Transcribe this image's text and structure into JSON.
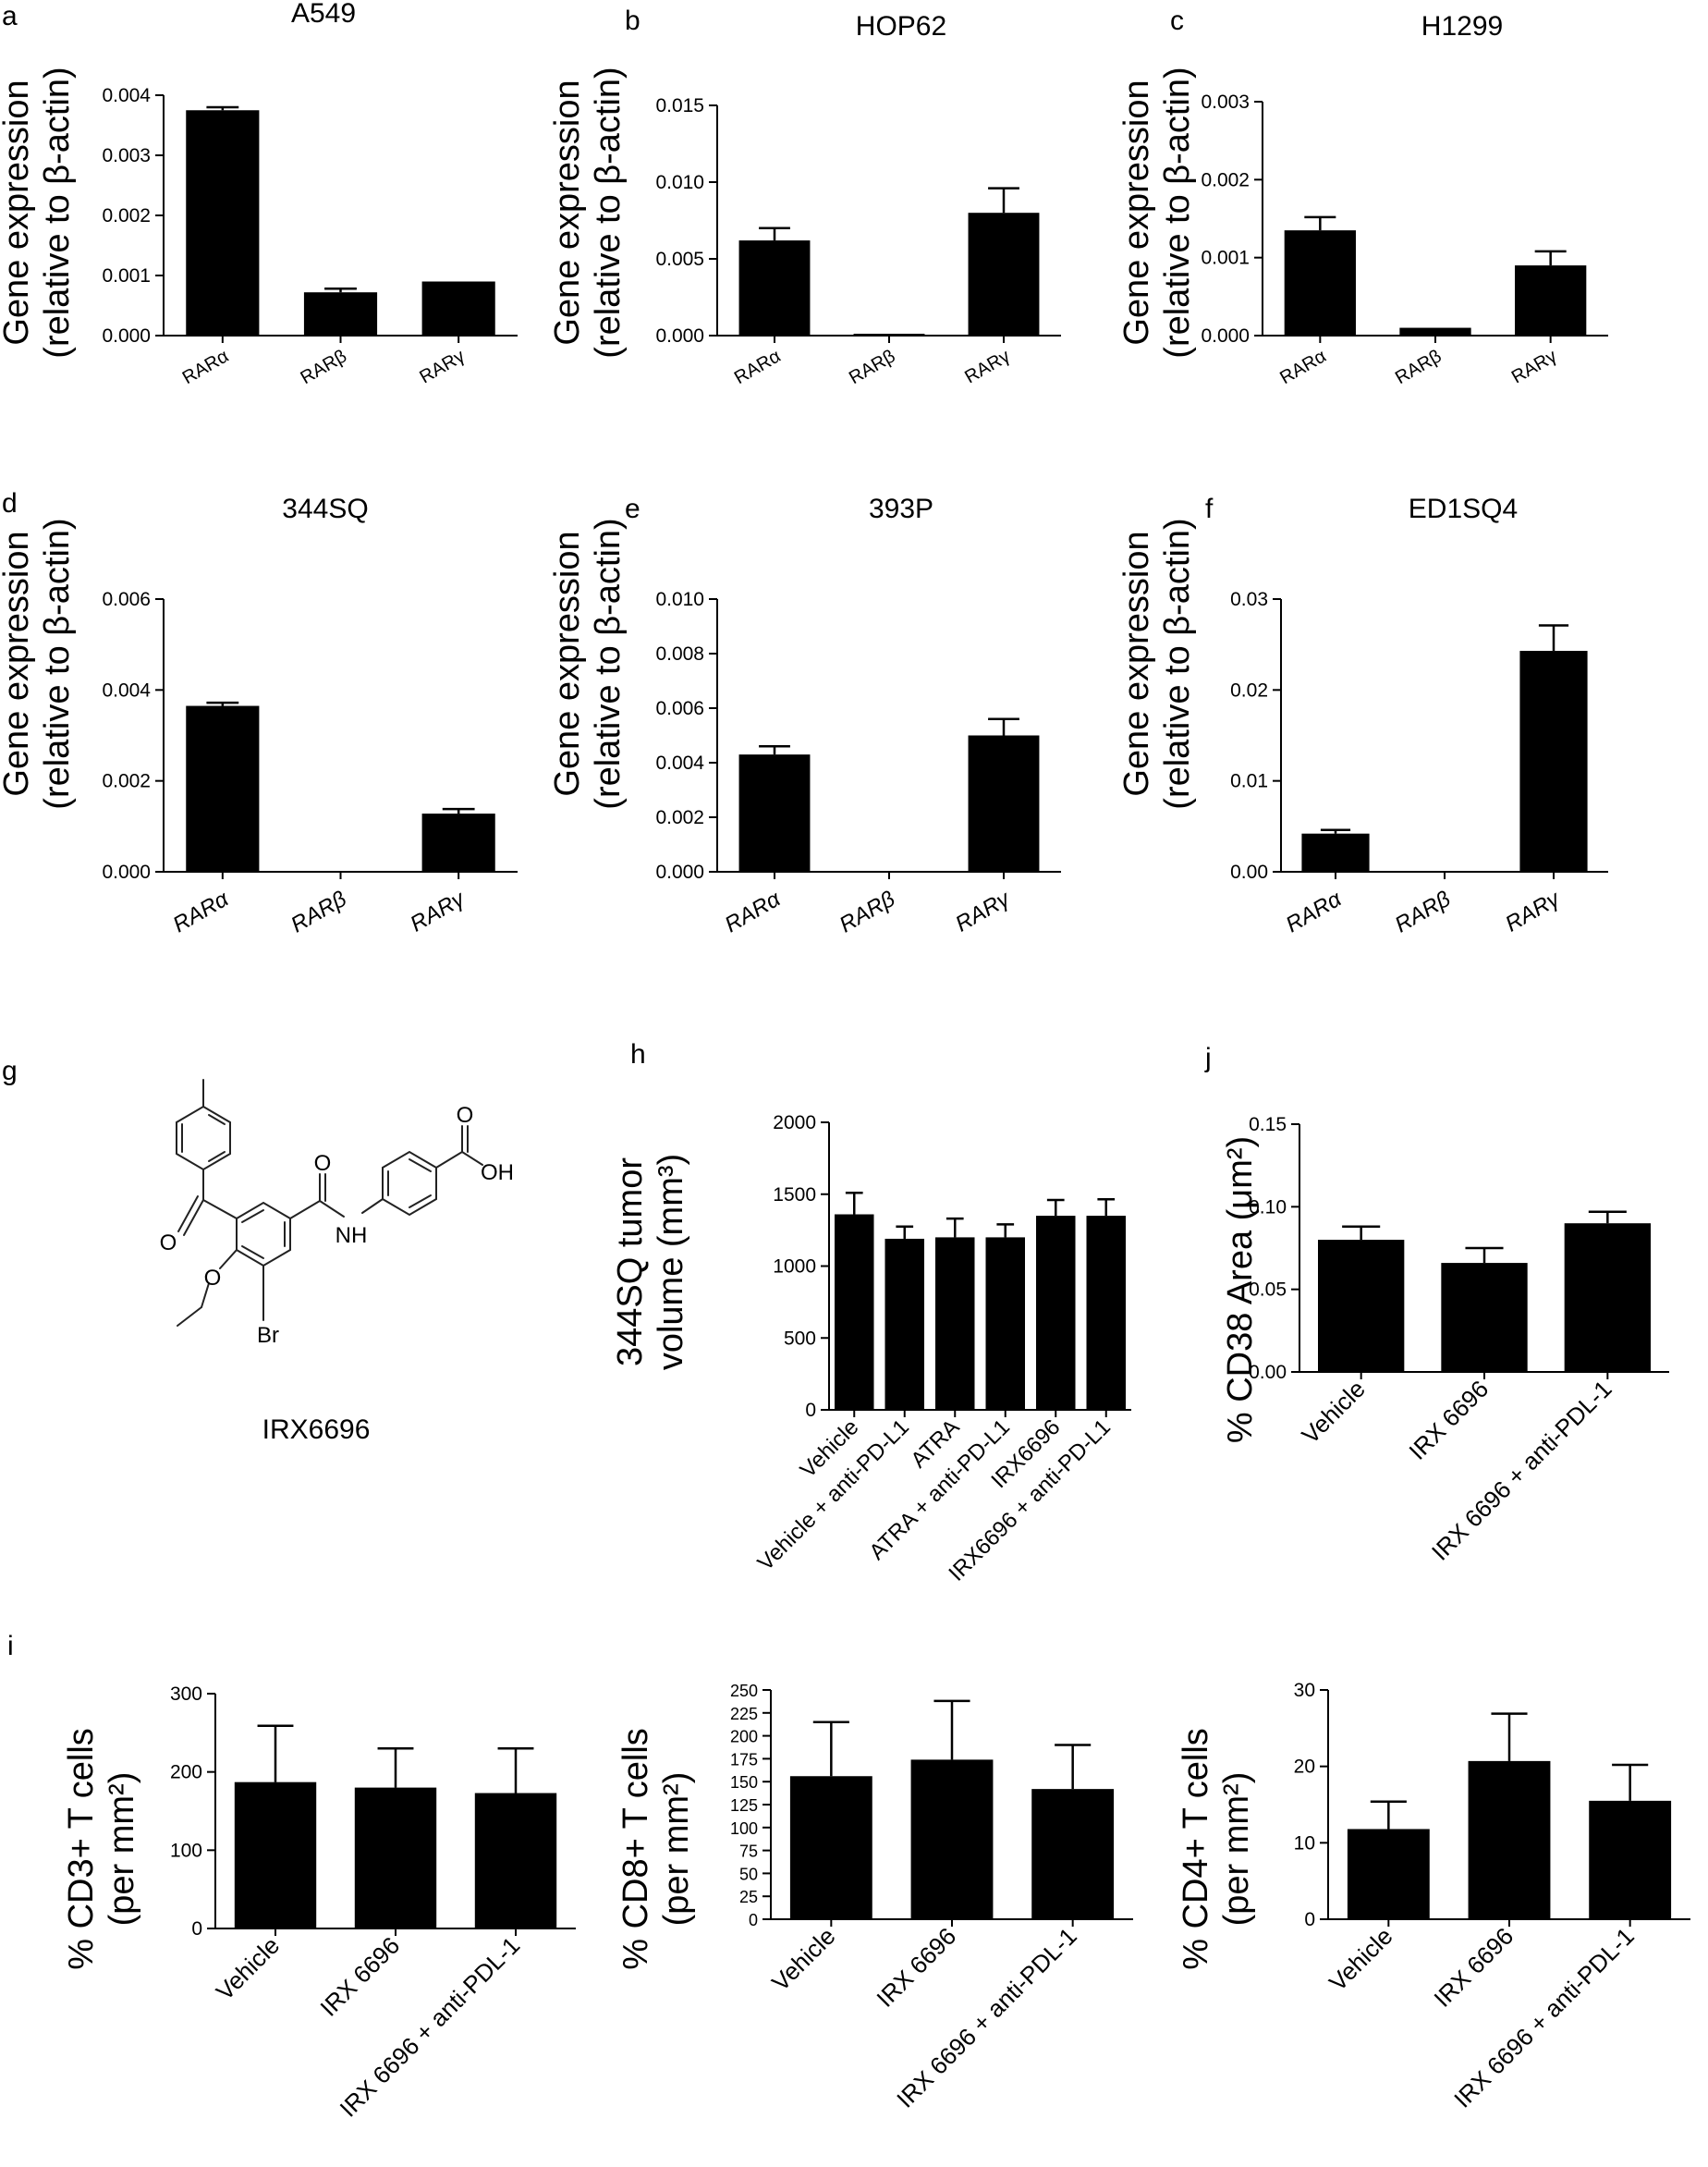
{
  "figure": {
    "panels": [
      {
        "id": "a",
        "title": "A549",
        "ylabel_lines": [
          "Gene expression",
          "(relative to β-actin)"
        ]
      },
      {
        "id": "b",
        "title": "HOP62",
        "ylabel_lines": [
          "Gene expression",
          "(relative to β-actin)"
        ]
      },
      {
        "id": "c",
        "title": "H1299",
        "ylabel_lines": [
          "Gene expression",
          "(relative to β-actin)"
        ]
      },
      {
        "id": "d",
        "title": "344SQ",
        "ylabel_lines": [
          "Gene expression",
          "(relative to β-actin)"
        ]
      },
      {
        "id": "e",
        "title": "393P",
        "ylabel_lines": [
          "Gene expression",
          "(relative to β-actin)"
        ]
      },
      {
        "id": "f",
        "title": "ED1SQ4",
        "ylabel_lines": [
          "Gene expression",
          "(relative to β-actin)"
        ]
      },
      {
        "id": "h",
        "title": "",
        "ylabel_lines": [
          "344SQ tumor",
          "volume (mm³)"
        ]
      },
      {
        "id": "j",
        "title": "",
        "ylabel_lines": [
          "% CD38 Area (μm²)"
        ]
      },
      {
        "id": "i",
        "title": "",
        "ylabel_lines": [
          "% CD3+ T cells",
          "(per mm²)"
        ]
      },
      {
        "id": "i2",
        "title": "",
        "ylabel_lines": [
          "% CD8+ T cells",
          "(per mm²)"
        ]
      },
      {
        "id": "i3",
        "title": "",
        "ylabel_lines": [
          "% CD4+ T cells",
          "(per mm²)"
        ]
      }
    ],
    "structure": {
      "panel_letter": "g",
      "compound_name": "IRX6696",
      "atom_labels": {
        "carbonyl_o": "O",
        "amide_o": "O",
        "amide_n": "NH",
        "acid_o": "O",
        "acid_oh": "OH",
        "ether_o": "O",
        "bromine": "Br"
      }
    }
  },
  "chart_data": [
    {
      "panel": "a",
      "type": "bar",
      "title": "A549",
      "ylabel": "Gene expression (relative to β-actin)",
      "categories": [
        "RARα",
        "RARβ",
        "RARγ"
      ],
      "values": [
        0.00375,
        0.00072,
        0.0009
      ],
      "errors": [
        5e-05,
        6e-05,
        0.0
      ],
      "ylim": [
        0,
        0.004
      ],
      "yticks": [
        0.0,
        0.001,
        0.002,
        0.003,
        0.004
      ],
      "ytick_labels": [
        "0.000",
        "0.001",
        "0.002",
        "0.003",
        "0.004"
      ],
      "category_style": "rotated-small"
    },
    {
      "panel": "b",
      "type": "bar",
      "title": "HOP62",
      "ylabel": "Gene expression (relative to β-actin)",
      "categories": [
        "RARα",
        "RARβ",
        "RARγ"
      ],
      "values": [
        0.0062,
        5e-05,
        0.008
      ],
      "errors": [
        0.0008,
        0.0,
        0.0016
      ],
      "ylim": [
        0,
        0.015
      ],
      "yticks": [
        0.0,
        0.005,
        0.01,
        0.015
      ],
      "ytick_labels": [
        "0.000",
        "0.005",
        "0.010",
        "0.015"
      ],
      "category_style": "rotated-small"
    },
    {
      "panel": "c",
      "type": "bar",
      "title": "H1299",
      "ylabel": "Gene expression (relative to β-actin)",
      "categories": [
        "RARα",
        "RARβ",
        "RARγ"
      ],
      "values": [
        0.00135,
        0.0001,
        0.0009
      ],
      "errors": [
        0.00017,
        0.0,
        0.00018
      ],
      "ylim": [
        0,
        0.003
      ],
      "yticks": [
        0.0,
        0.001,
        0.002,
        0.003
      ],
      "ytick_labels": [
        "0.000",
        "0.001",
        "0.002",
        "0.003"
      ],
      "category_style": "rotated-small"
    },
    {
      "panel": "d",
      "type": "bar",
      "title": "344SQ",
      "ylabel": "Gene expression (relative to β-actin)",
      "categories": [
        "RARα",
        "RARβ",
        "RARγ"
      ],
      "values": [
        0.00365,
        0.0,
        0.00128
      ],
      "errors": [
        7e-05,
        0.0,
        0.0001
      ],
      "ylim": [
        0,
        0.006
      ],
      "yticks": [
        0.0,
        0.002,
        0.004,
        0.006
      ],
      "ytick_labels": [
        "0.000",
        "0.002",
        "0.004",
        "0.006"
      ],
      "category_style": "rotated-italic"
    },
    {
      "panel": "e",
      "type": "bar",
      "title": "393P",
      "ylabel": "Gene expression (relative to β-actin)",
      "categories": [
        "RARα",
        "RARβ",
        "RARγ"
      ],
      "values": [
        0.0043,
        0.0,
        0.005
      ],
      "errors": [
        0.0003,
        0.0,
        0.0006
      ],
      "ylim": [
        0,
        0.01
      ],
      "yticks": [
        0.0,
        0.002,
        0.004,
        0.006,
        0.008,
        0.01
      ],
      "ytick_labels": [
        "0.000",
        "0.002",
        "0.004",
        "0.006",
        "0.008",
        "0.010"
      ],
      "category_style": "rotated-italic"
    },
    {
      "panel": "f",
      "type": "bar",
      "title": "ED1SQ4",
      "ylabel": "Gene expression (relative to β-actin)",
      "categories": [
        "RARα",
        "RARβ",
        "RARγ"
      ],
      "values": [
        0.0042,
        0.0,
        0.0243
      ],
      "errors": [
        0.0004,
        0.0,
        0.0028
      ],
      "ylim": [
        0,
        0.03
      ],
      "yticks": [
        0.0,
        0.01,
        0.02,
        0.03
      ],
      "ytick_labels": [
        "0.00",
        "0.01",
        "0.02",
        "0.03"
      ],
      "category_style": "rotated-italic"
    },
    {
      "panel": "h",
      "type": "bar",
      "ylabel": "344SQ tumor volume (mm³)",
      "categories": [
        "Vehicle",
        "Vehicle + anti-PD-L1",
        "ATRA",
        "ATRA + anti-PD-L1",
        "IRX6696",
        "IRX6696 + anti-PD-L1"
      ],
      "values": [
        1360,
        1190,
        1200,
        1200,
        1350,
        1350
      ],
      "errors": [
        150,
        85,
        130,
        90,
        110,
        115
      ],
      "ylim": [
        0,
        2000
      ],
      "yticks": [
        0,
        500,
        1000,
        1500,
        2000
      ],
      "ytick_labels": [
        "0",
        "500",
        "1000",
        "1500",
        "2000"
      ],
      "category_style": "rotated-big"
    },
    {
      "panel": "j",
      "type": "bar",
      "ylabel": "% CD38 Area (μm²)",
      "categories": [
        "Vehicle",
        "IRX 6696",
        "IRX 6696 + anti-PDL-1"
      ],
      "values": [
        0.08,
        0.066,
        0.09
      ],
      "errors": [
        0.008,
        0.009,
        0.007
      ],
      "ylim": [
        0,
        0.15
      ],
      "yticks": [
        0.0,
        0.05,
        0.1,
        0.15
      ],
      "ytick_labels": [
        "0.00",
        "0.05",
        "0.10",
        "0.15"
      ],
      "category_style": "rotated-big"
    },
    {
      "panel": "i",
      "type": "bar",
      "ylabel": "% CD3+ T cells (per mm²)",
      "categories": [
        "Vehicle",
        "IRX 6696",
        "IRX 6696 + anti-PDL-1"
      ],
      "values": [
        187,
        180,
        173
      ],
      "errors": [
        72,
        50,
        57
      ],
      "ylim": [
        0,
        300
      ],
      "yticks": [
        0,
        100,
        200,
        300
      ],
      "ytick_labels": [
        "0",
        "100",
        "200",
        "300"
      ],
      "category_style": "rotated-big"
    },
    {
      "panel": "i2",
      "type": "bar",
      "ylabel": "% CD8+ T cells (per mm²)",
      "categories": [
        "Vehicle",
        "IRX 6696",
        "IRX 6696 + anti-PDL-1"
      ],
      "values": [
        156,
        174,
        142
      ],
      "errors": [
        59,
        64,
        48
      ],
      "ylim": [
        0,
        250
      ],
      "yticks": [
        0,
        25,
        50,
        75,
        100,
        125,
        150,
        175,
        200,
        225,
        250
      ],
      "ytick_labels": [
        "0",
        "25",
        "50",
        "75",
        "100",
        "125",
        "150",
        "175",
        "200",
        "225",
        "250"
      ],
      "category_style": "rotated-big"
    },
    {
      "panel": "i3",
      "type": "bar",
      "ylabel": "% CD4+ T cells (per mm²)",
      "categories": [
        "Vehicle",
        "IRX 6696",
        "IRX 6696 + anti-PDL-1"
      ],
      "values": [
        11.8,
        20.7,
        15.5
      ],
      "errors": [
        3.6,
        6.2,
        4.7
      ],
      "ylim": [
        0,
        30
      ],
      "yticks": [
        0,
        10,
        20,
        30
      ],
      "ytick_labels": [
        "0",
        "10",
        "20",
        "30"
      ],
      "category_style": "rotated-big"
    }
  ]
}
